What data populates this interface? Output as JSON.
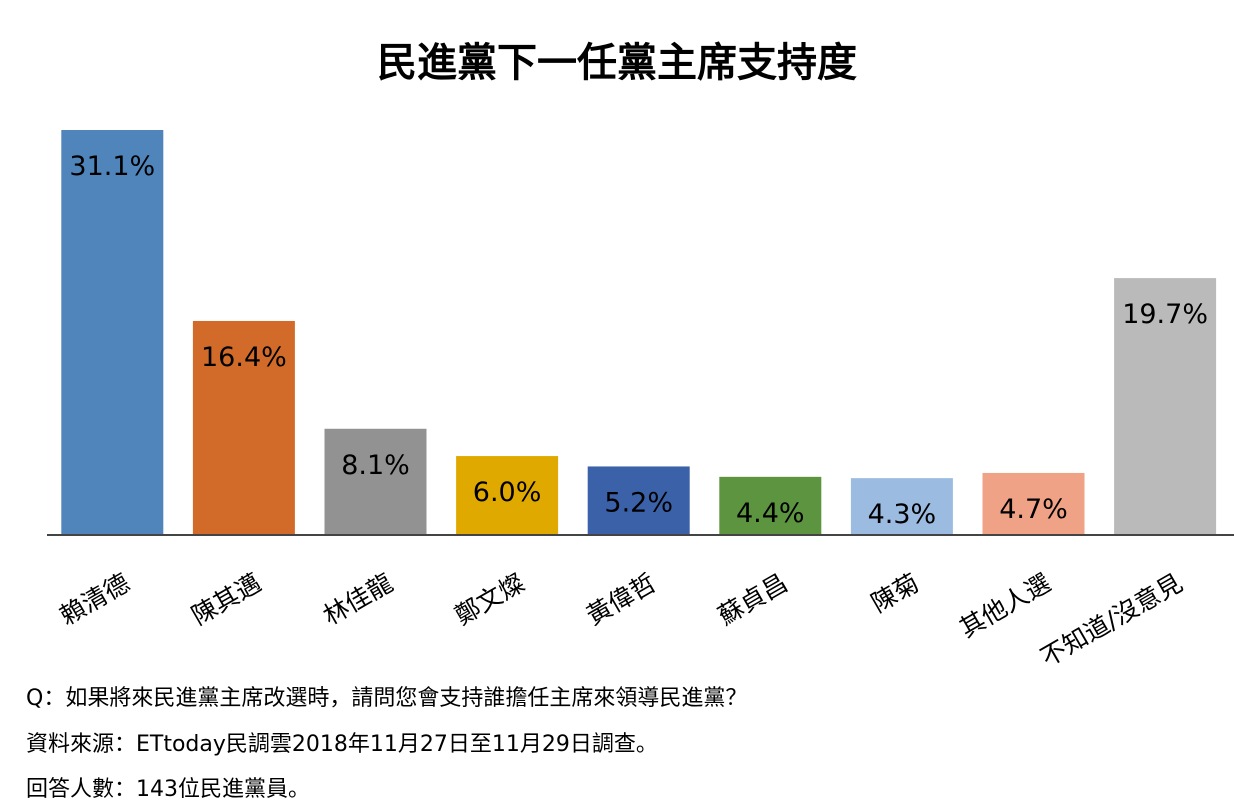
{
  "chart_data": {
    "type": "bar",
    "title": "民進黨下一任黨主席支持度",
    "categories": [
      "賴清德",
      "陳其邁",
      "林佳龍",
      "鄭文燦",
      "黃偉哲",
      "蘇貞昌",
      "陳菊",
      "其他人選",
      "不知道/沒意見"
    ],
    "values": [
      31.1,
      16.4,
      8.1,
      6.0,
      5.2,
      4.4,
      4.3,
      4.7,
      19.7
    ],
    "data_labels": [
      "31.1%",
      "16.4%",
      "8.1%",
      "6.0%",
      "5.2%",
      "4.4%",
      "4.3%",
      "4.7%",
      "19.7%"
    ],
    "colors": [
      "#5085bb",
      "#d26b2a",
      "#929292",
      "#e0a900",
      "#3b61a9",
      "#5c9440",
      "#9bbbe1",
      "#efa285",
      "#bababa"
    ],
    "unit": "%",
    "ylim": [
      0,
      31.1
    ],
    "grid": false,
    "legend": "none"
  },
  "notes": {
    "question": "Q：如果將來民進黨主席改選時，請問您會支持誰擔任主席來領導民進黨？",
    "source": "資料來源：ETtoday民調雲2018年11月27日至11月29日調查。",
    "respondents": "回答人數：143位民進黨員。"
  }
}
